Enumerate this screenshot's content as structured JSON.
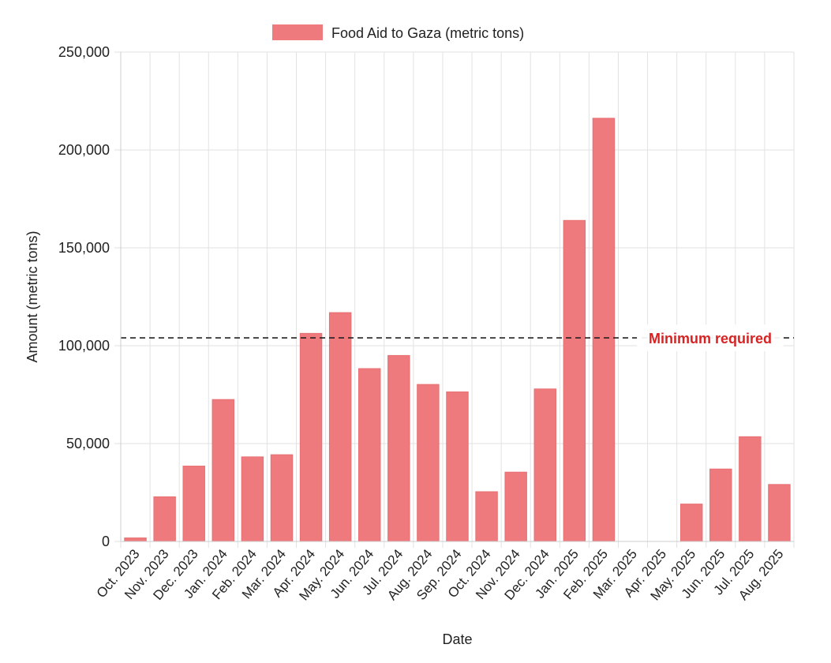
{
  "chart_data": {
    "type": "bar",
    "title": "",
    "legend": {
      "label": "Food Aid to Gaza (metric tons)",
      "position": "top"
    },
    "xlabel": "Date",
    "ylabel": "Amount (metric tons)",
    "ylim": [
      0,
      250000
    ],
    "yticks": [
      0,
      50000,
      100000,
      150000,
      200000,
      250000
    ],
    "ytick_labels": [
      "0",
      "50,000",
      "100,000",
      "150,000",
      "200,000",
      "250,000"
    ],
    "grid": true,
    "categories": [
      "Oct. 2023",
      "Nov. 2023",
      "Dec. 2023",
      "Jan. 2024",
      "Feb. 2024",
      "Mar. 2024",
      "Apr. 2024",
      "May. 2024",
      "Jun. 2024",
      "Jul. 2024",
      "Aug. 2024",
      "Sep. 2024",
      "Oct. 2024",
      "Nov. 2024",
      "Dec. 2024",
      "Jan. 2025",
      "Feb. 2025",
      "Mar. 2025",
      "Apr. 2025",
      "May. 2025",
      "Jun. 2025",
      "Jul. 2025",
      "Aug. 2025"
    ],
    "values": [
      1800,
      22800,
      38500,
      72500,
      43200,
      44300,
      106300,
      116900,
      88300,
      95000,
      80200,
      76400,
      25400,
      35400,
      77900,
      164000,
      216200,
      0,
      0,
      19100,
      37000,
      53500,
      29100
    ],
    "reference_line": {
      "value": 104000,
      "label": "Minimum required",
      "label_color": "#d62424",
      "line_color": "#222222"
    },
    "colors": {
      "bar_fill": "#ee7a7d",
      "bar_stroke": "#e86f72",
      "grid": "#e2e2e2",
      "axis": "#cccccc",
      "text": "#222222"
    }
  }
}
